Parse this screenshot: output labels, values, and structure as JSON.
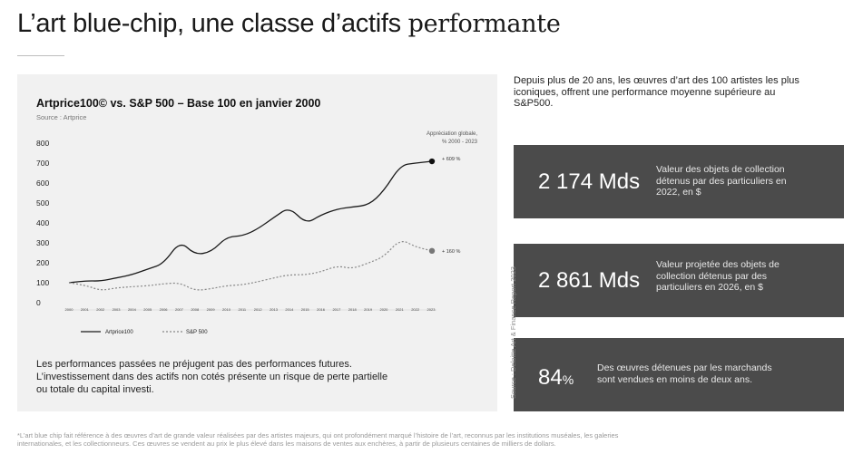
{
  "title": {
    "main": "L’art blue-chip, une classe d’actifs ",
    "accent": "performante"
  },
  "chart_panel": {
    "title": "Artprice100© vs. S&P 500 – Base 100 en janvier 2000",
    "source": "Source : Artprice",
    "appreciation_label_1": "Appréciation globale,",
    "appreciation_label_2": "% 2000 - 2023"
  },
  "chart_data": {
    "type": "line",
    "title": "Artprice100© vs. S&P 500 – Base 100 en janvier 2000",
    "x": [
      2000,
      2001,
      2002,
      2003,
      2004,
      2005,
      2006,
      2007,
      2008,
      2009,
      2010,
      2011,
      2012,
      2013,
      2014,
      2015,
      2016,
      2017,
      2018,
      2019,
      2020,
      2021,
      2022,
      2023
    ],
    "x_tick_labels": [
      "2000",
      "2001",
      "2002",
      "2003",
      "2004",
      "2005",
      "2006",
      "2007",
      "2008",
      "2009",
      "2010",
      "2011",
      "2012",
      "2013",
      "2014",
      "2015",
      "2016",
      "2017",
      "2018",
      "2019",
      "2020",
      "2021",
      "2022",
      "2023"
    ],
    "y_ticks": [
      0,
      100,
      200,
      300,
      400,
      500,
      600,
      700,
      800
    ],
    "ylim": [
      0,
      800
    ],
    "series": [
      {
        "name": "Artprice100",
        "style": "solid",
        "color": "#1a1a1a",
        "values": [
          100,
          110,
          108,
          125,
          140,
          170,
          195,
          310,
          240,
          255,
          330,
          335,
          370,
          430,
          480,
          395,
          440,
          470,
          480,
          490,
          560,
          690,
          700,
          709
        ],
        "end_label": "+ 609 %"
      },
      {
        "name": "S&P 500",
        "style": "dotted",
        "color": "#888888",
        "values": [
          100,
          88,
          60,
          75,
          80,
          85,
          95,
          100,
          60,
          70,
          85,
          90,
          105,
          125,
          140,
          140,
          155,
          185,
          170,
          200,
          230,
          320,
          280,
          260
        ],
        "end_label": "+ 160 %"
      }
    ],
    "legend_position": "bottom-left",
    "grid": false
  },
  "disclaimer": [
    "Les performances passées ne préjugent pas des performances futures.",
    "L’investissement dans des actifs non cotés présente un risque de perte partielle",
    "ou totale du capital investi."
  ],
  "intro": [
    "Depuis plus de 20 ans, les œuvres d’art des 100 artistes les plus",
    "iconiques, offrent une performance moyenne supérieure au",
    "S&P500."
  ],
  "stats": [
    {
      "value": "2 174 Mds",
      "unit": "",
      "desc": [
        "Valeur des objets de collection",
        "détenus par des particuliers en",
        "2022, en $"
      ]
    },
    {
      "value": "2 861 Mds",
      "unit": "",
      "desc": [
        "Valeur projetée des objets de",
        "collection détenus par des",
        "particuliers en 2026, en $"
      ]
    },
    {
      "value": "84",
      "unit": "%",
      "desc": [
        "Des œuvres détenues par les marchands",
        "sont vendues en moins de deux ans."
      ]
    }
  ],
  "vertical_source": "Source : Deloitte Art & Finance Report 2023",
  "footnote": [
    "*L’art blue chip fait référence à des œuvres d’art de grande valeur réalisées par des artistes majeurs, qui ont profondément marqué l’histoire de l’art, reconnus par les institutions muséales, les galeries",
    "internationales, et les collectionneurs. Ces œuvres se vendent au prix le plus élevé dans les maisons de ventes aux enchères, à partir de plusieurs centaines de milliers de dollars."
  ],
  "colors": {
    "box_bg": "#4b4b4b",
    "panel_bg": "#f1f1f1",
    "text": "#1a1a1a"
  }
}
